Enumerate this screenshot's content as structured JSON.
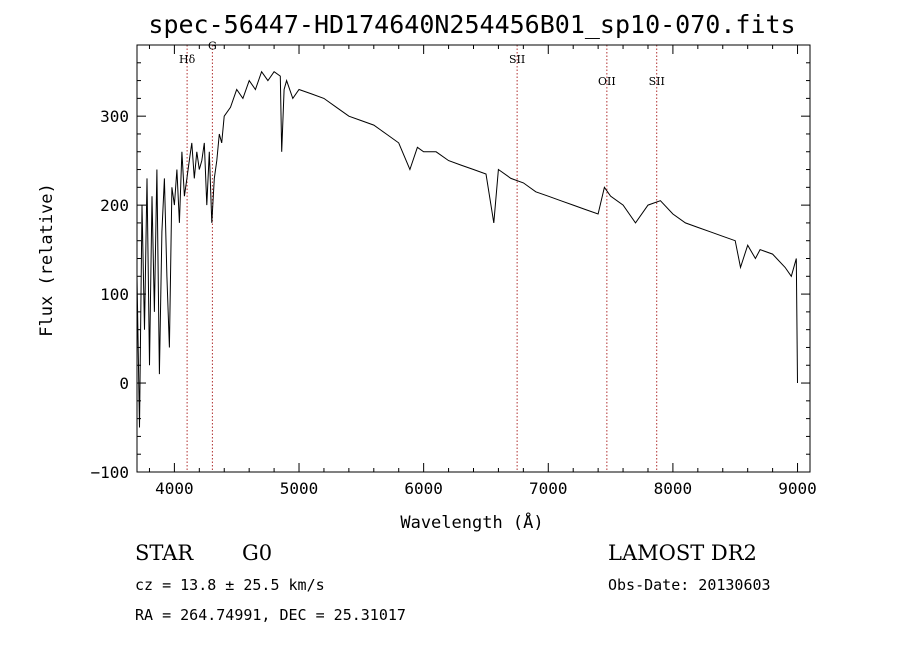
{
  "chart_data": {
    "type": "line",
    "title": "spec-56447-HD174640N254456B01_sp10-070.fits",
    "xlabel": "Wavelength (Å)",
    "ylabel": "Flux (relative)",
    "xlim": [
      3700,
      9100
    ],
    "ylim": [
      -100,
      380
    ],
    "xticks": [
      4000,
      5000,
      6000,
      7000,
      8000,
      9000
    ],
    "yticks": [
      -100,
      0,
      100,
      200,
      300
    ],
    "grid": false,
    "series": [
      {
        "color": "#000000",
        "x": [
          3700,
          3720,
          3740,
          3760,
          3780,
          3800,
          3820,
          3840,
          3860,
          3880,
          3900,
          3920,
          3940,
          3960,
          3980,
          4000,
          4020,
          4040,
          4060,
          4080,
          4100,
          4120,
          4140,
          4160,
          4180,
          4200,
          4220,
          4240,
          4260,
          4280,
          4300,
          4320,
          4340,
          4360,
          4380,
          4400,
          4450,
          4500,
          4550,
          4600,
          4650,
          4700,
          4750,
          4800,
          4850,
          4861,
          4880,
          4900,
          4950,
          5000,
          5100,
          5200,
          5300,
          5400,
          5500,
          5600,
          5700,
          5800,
          5890,
          5950,
          6000,
          6100,
          6200,
          6300,
          6400,
          6500,
          6563,
          6600,
          6700,
          6800,
          6900,
          7000,
          7100,
          7200,
          7300,
          7400,
          7450,
          7500,
          7600,
          7700,
          7800,
          7900,
          8000,
          8100,
          8200,
          8300,
          8400,
          8500,
          8542,
          8600,
          8662,
          8700,
          8800,
          8900,
          8950,
          8990,
          9000
        ],
        "y": [
          120,
          -50,
          200,
          60,
          230,
          20,
          210,
          80,
          240,
          10,
          170,
          230,
          120,
          40,
          220,
          200,
          240,
          180,
          260,
          210,
          230,
          250,
          270,
          230,
          260,
          240,
          250,
          270,
          200,
          260,
          180,
          230,
          250,
          280,
          270,
          300,
          310,
          330,
          320,
          340,
          330,
          350,
          340,
          350,
          345,
          260,
          330,
          340,
          320,
          330,
          325,
          320,
          310,
          300,
          295,
          290,
          280,
          270,
          240,
          265,
          260,
          260,
          250,
          245,
          240,
          235,
          180,
          240,
          230,
          225,
          215,
          210,
          205,
          200,
          195,
          190,
          220,
          210,
          200,
          180,
          200,
          205,
          190,
          180,
          175,
          170,
          165,
          160,
          130,
          155,
          140,
          150,
          145,
          130,
          120,
          140,
          0
        ]
      }
    ],
    "annotations": [
      {
        "label": "Hδ",
        "x": 4102,
        "y": 360
      },
      {
        "label": "G",
        "x": 4305,
        "y": 375
      },
      {
        "label": "SII",
        "x": 6750,
        "y": 360
      },
      {
        "label": "OII",
        "x": 7470,
        "y": 335
      },
      {
        "label": "SII",
        "x": 7870,
        "y": 335
      }
    ],
    "annotation_color": "#b03030"
  },
  "info": {
    "object_class": "STAR",
    "subclass": "G0",
    "redshift": "cz = 13.8 ± 25.5 km/s",
    "coords": "RA = 264.74991, DEC =  25.31017",
    "survey": "LAMOST DR2",
    "obs_date": "Obs-Date: 20130603"
  }
}
